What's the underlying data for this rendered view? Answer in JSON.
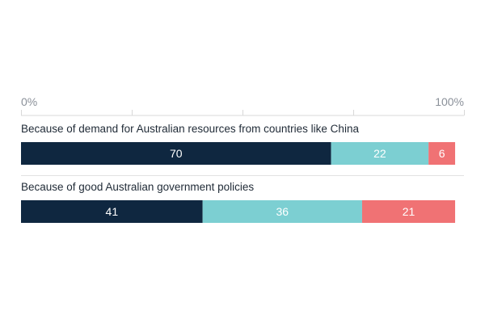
{
  "chart_data": {
    "type": "bar",
    "orientation": "horizontal",
    "stacked": true,
    "xlim": [
      0,
      100
    ],
    "x_tick_labels": {
      "start": "0%",
      "end": "100%"
    },
    "categories": [
      "Because of demand for Australian resources from countries like China",
      "Because of good Australian government policies"
    ],
    "series": [
      {
        "values": [
          70,
          41
        ],
        "color": "#0f2740"
      },
      {
        "values": [
          22,
          36
        ],
        "color": "#7ccfd2"
      },
      {
        "values": [
          6,
          21
        ],
        "color": "#f07274"
      }
    ],
    "data_label_colors": [
      "#ffffff",
      "#ffffff",
      "#ffffff"
    ]
  }
}
